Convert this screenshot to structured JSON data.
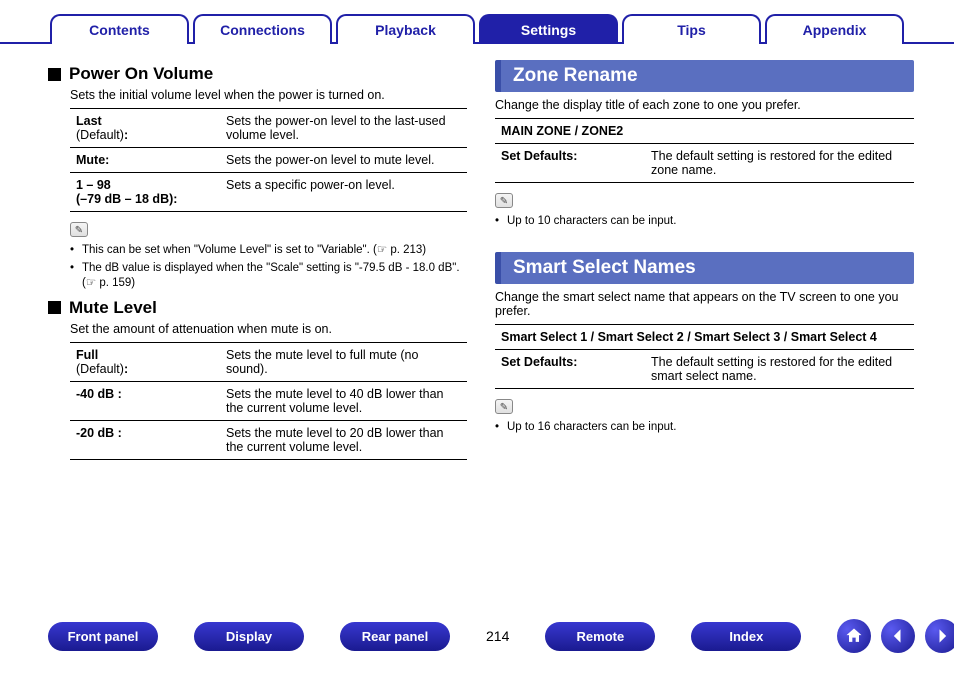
{
  "nav": {
    "tabs": [
      "Contents",
      "Connections",
      "Playback",
      "Settings",
      "Tips",
      "Appendix"
    ],
    "active_index": 3
  },
  "left": {
    "sections": [
      {
        "title": "Power On Volume",
        "desc": "Sets the initial volume level when the power is turned on.",
        "rows": [
          {
            "key": "Last",
            "key_sub": "(Default):",
            "val": "Sets the power-on level to the last-used volume level."
          },
          {
            "key": "Mute:",
            "val": "Sets the power-on level to mute level."
          },
          {
            "key": "1 – 98",
            "key_line2": "(–79 dB – 18 dB):",
            "val": "Sets a specific power-on level."
          }
        ],
        "notes": [
          "This can be set when \"Volume Level\" is set to \"Variable\".  (☞ p. 213)",
          "The dB value is displayed when the \"Scale\" setting is \"-79.5 dB - 18.0 dB\". (☞ p. 159)"
        ]
      },
      {
        "title": "Mute Level",
        "desc": "Set the amount of attenuation when mute is on.",
        "rows": [
          {
            "key": "Full",
            "key_sub": "(Default):",
            "val": "Sets the mute level to full mute (no sound)."
          },
          {
            "key": "-40 dB :",
            "val": "Sets the mute level to 40 dB lower than the current volume level."
          },
          {
            "key": "-20 dB :",
            "val": "Sets the mute level to 20 dB lower than the current volume level."
          }
        ]
      }
    ]
  },
  "right": {
    "sections": [
      {
        "banner": "Zone Rename",
        "desc": "Change the display title of each zone to one you prefer.",
        "header": "MAIN ZONE / ZONE2",
        "rows": [
          {
            "key": "Set Defaults:",
            "val": "The default setting is restored for the edited zone name."
          }
        ],
        "notes": [
          "Up to 10 characters can be input."
        ]
      },
      {
        "banner": "Smart Select Names",
        "desc": "Change the smart select name that appears on the TV screen to one you prefer.",
        "header": "Smart Select 1 / Smart Select 2 / Smart Select 3 / Smart Select 4",
        "rows": [
          {
            "key": "Set Defaults:",
            "val": "The default setting is restored for the edited smart select name."
          }
        ],
        "notes": [
          "Up to 16 characters can be input."
        ]
      }
    ]
  },
  "bottom": {
    "buttons": [
      "Front panel",
      "Display",
      "Rear panel"
    ],
    "page": "214",
    "buttons2": [
      "Remote",
      "Index"
    ]
  },
  "colors": {
    "brand": "#2020a8",
    "banner_bg": "#5a6fc0"
  }
}
